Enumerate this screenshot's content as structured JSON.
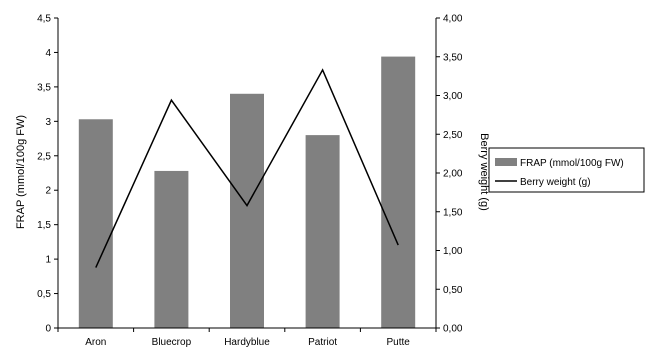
{
  "chart_data": {
    "type": "bar",
    "categories": [
      "Aron",
      "Bluecrop",
      "Hardyblue",
      "Patriot",
      "Putte"
    ],
    "series": [
      {
        "name": "FRAP (mmol/100g FW)",
        "type": "bar",
        "axis": "left",
        "values": [
          3.03,
          2.28,
          3.4,
          2.8,
          3.94
        ],
        "color": "#808080"
      },
      {
        "name": "Berry weight (g)",
        "type": "line",
        "axis": "right",
        "values": [
          0.78,
          2.94,
          1.58,
          3.33,
          1.07
        ],
        "color": "#000000"
      }
    ],
    "ylabel": "FRAP (mmol/100g FW)",
    "ylabel_right": "Berry weight (g)",
    "ylim": [
      0,
      4.5
    ],
    "ylim_right": [
      0,
      4.0
    ],
    "yticks": [
      "0",
      "0,5",
      "1",
      "1,5",
      "2",
      "2,5",
      "3",
      "3,5",
      "4",
      "4,5"
    ],
    "yticks_right": [
      "0,00",
      "0,50",
      "1,00",
      "1,50",
      "2,00",
      "2,50",
      "3,00",
      "3,50",
      "4,00"
    ],
    "grid": false,
    "legend_position": "right"
  }
}
